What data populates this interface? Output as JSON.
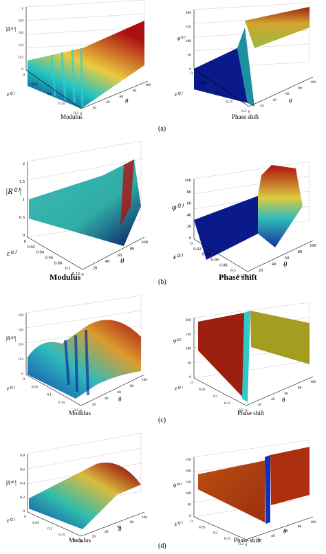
{
  "rows": [
    {
      "label": "(a)",
      "left": {
        "zlabel": "|R⁽¹⁾|",
        "xlabel": "θ",
        "ylabel": "ε⁽²⁾",
        "zticks": [
          "1",
          "0.8",
          "0.6",
          "0.4",
          "0.2",
          "0"
        ],
        "yticks": [
          "0",
          "0.05",
          "0.1",
          "0.15",
          "0.2"
        ],
        "xticks": [
          "0",
          "20",
          "40",
          "60",
          "80",
          "100"
        ],
        "caption": "Modulus"
      },
      "right": {
        "zlabel": "φ⁽¹⁾",
        "xlabel": "θ",
        "ylabel": "ε⁽²⁾",
        "zticks": [
          "200",
          "150",
          "100",
          "50",
          "0"
        ],
        "yticks": [
          "0",
          "0.05",
          "0.1",
          "0.15",
          "0.2"
        ],
        "xticks": [
          "0",
          "20",
          "40",
          "60",
          "80",
          "100"
        ],
        "caption": "Phase shift"
      }
    },
    {
      "label": "(b)",
      "left": {
        "zlabel": "|R⁽²⁾|",
        "xlabel": "θ",
        "ylabel": "ε⁽²⁾",
        "zticks": [
          "2",
          "1.5",
          "1",
          "0.5",
          "0"
        ],
        "yticks": [
          "0",
          "0.02",
          "0.04",
          "0.06",
          "0.08",
          "0.1",
          "0.12"
        ],
        "xticks": [
          "0",
          "20",
          "40",
          "60",
          "80",
          "100"
        ],
        "caption": "Modulus"
      },
      "right": {
        "zlabel": "φ⁽²⁾",
        "xlabel": "θ",
        "ylabel": "ε⁽²⁾",
        "zticks": [
          "100",
          "80",
          "60",
          "40",
          "20",
          "0"
        ],
        "yticks": [
          "0",
          "0.02",
          "0.04",
          "0.06",
          "0.08",
          "0.1",
          "0.12"
        ],
        "xticks": [
          "0",
          "20",
          "40",
          "60",
          "80",
          "100"
        ],
        "caption": "Phase shift"
      }
    },
    {
      "label": "(c)",
      "left": {
        "zlabel": "|R⁽³⁾|",
        "xlabel": "θ",
        "ylabel": "ε⁽²⁾",
        "zticks": [
          "0.8",
          "0.6",
          "0.4",
          "0.2",
          "0"
        ],
        "yticks": [
          "0",
          "0.05",
          "0.1",
          "0.15",
          "0.2"
        ],
        "xticks": [
          "0",
          "20",
          "40",
          "60",
          "80",
          "100"
        ],
        "caption": "Modulus"
      },
      "right": {
        "zlabel": "φ⁽³⁾",
        "xlabel": "θ",
        "ylabel": "ε⁽²⁾",
        "zticks": [
          "200",
          "150",
          "100",
          "50",
          "0"
        ],
        "yticks": [
          "0",
          "0.05",
          "0.1",
          "0.15",
          "0.2"
        ],
        "xticks": [
          "0",
          "20",
          "40",
          "60",
          "80",
          "100"
        ],
        "caption": "Phase shift"
      }
    },
    {
      "label": "(d)",
      "left": {
        "zlabel": "|R⁽⁴⁾|",
        "xlabel": "θ",
        "ylabel": "ε⁽²⁾",
        "zticks": [
          "0.8",
          "0.6",
          "0.4",
          "0.2",
          "0"
        ],
        "yticks": [
          "0",
          "0.05",
          "0.1",
          "0.15",
          "0.2"
        ],
        "xticks": [
          "0",
          "20",
          "40",
          "60",
          "80",
          "100"
        ],
        "caption": "Modulus"
      },
      "right": {
        "zlabel": "φ⁽⁴⁾",
        "xlabel": "θ",
        "ylabel": "ε⁽²⁾",
        "zticks": [
          "250",
          "200",
          "150",
          "100",
          "50",
          "0"
        ],
        "yticks": [
          "0",
          "0.05",
          "0.1",
          "0.15",
          "0.2"
        ],
        "xticks": [
          "0",
          "20",
          "40",
          "60",
          "80",
          "100"
        ],
        "caption": "Phase shift"
      }
    }
  ],
  "colors": {
    "surface_low": "#0a1a8a",
    "surface_mid": "#22c8c8",
    "surface_high_yellow": "#f0d040",
    "surface_high": "#b01010",
    "axis": "#000000",
    "grid": "#c8c8c8"
  }
}
